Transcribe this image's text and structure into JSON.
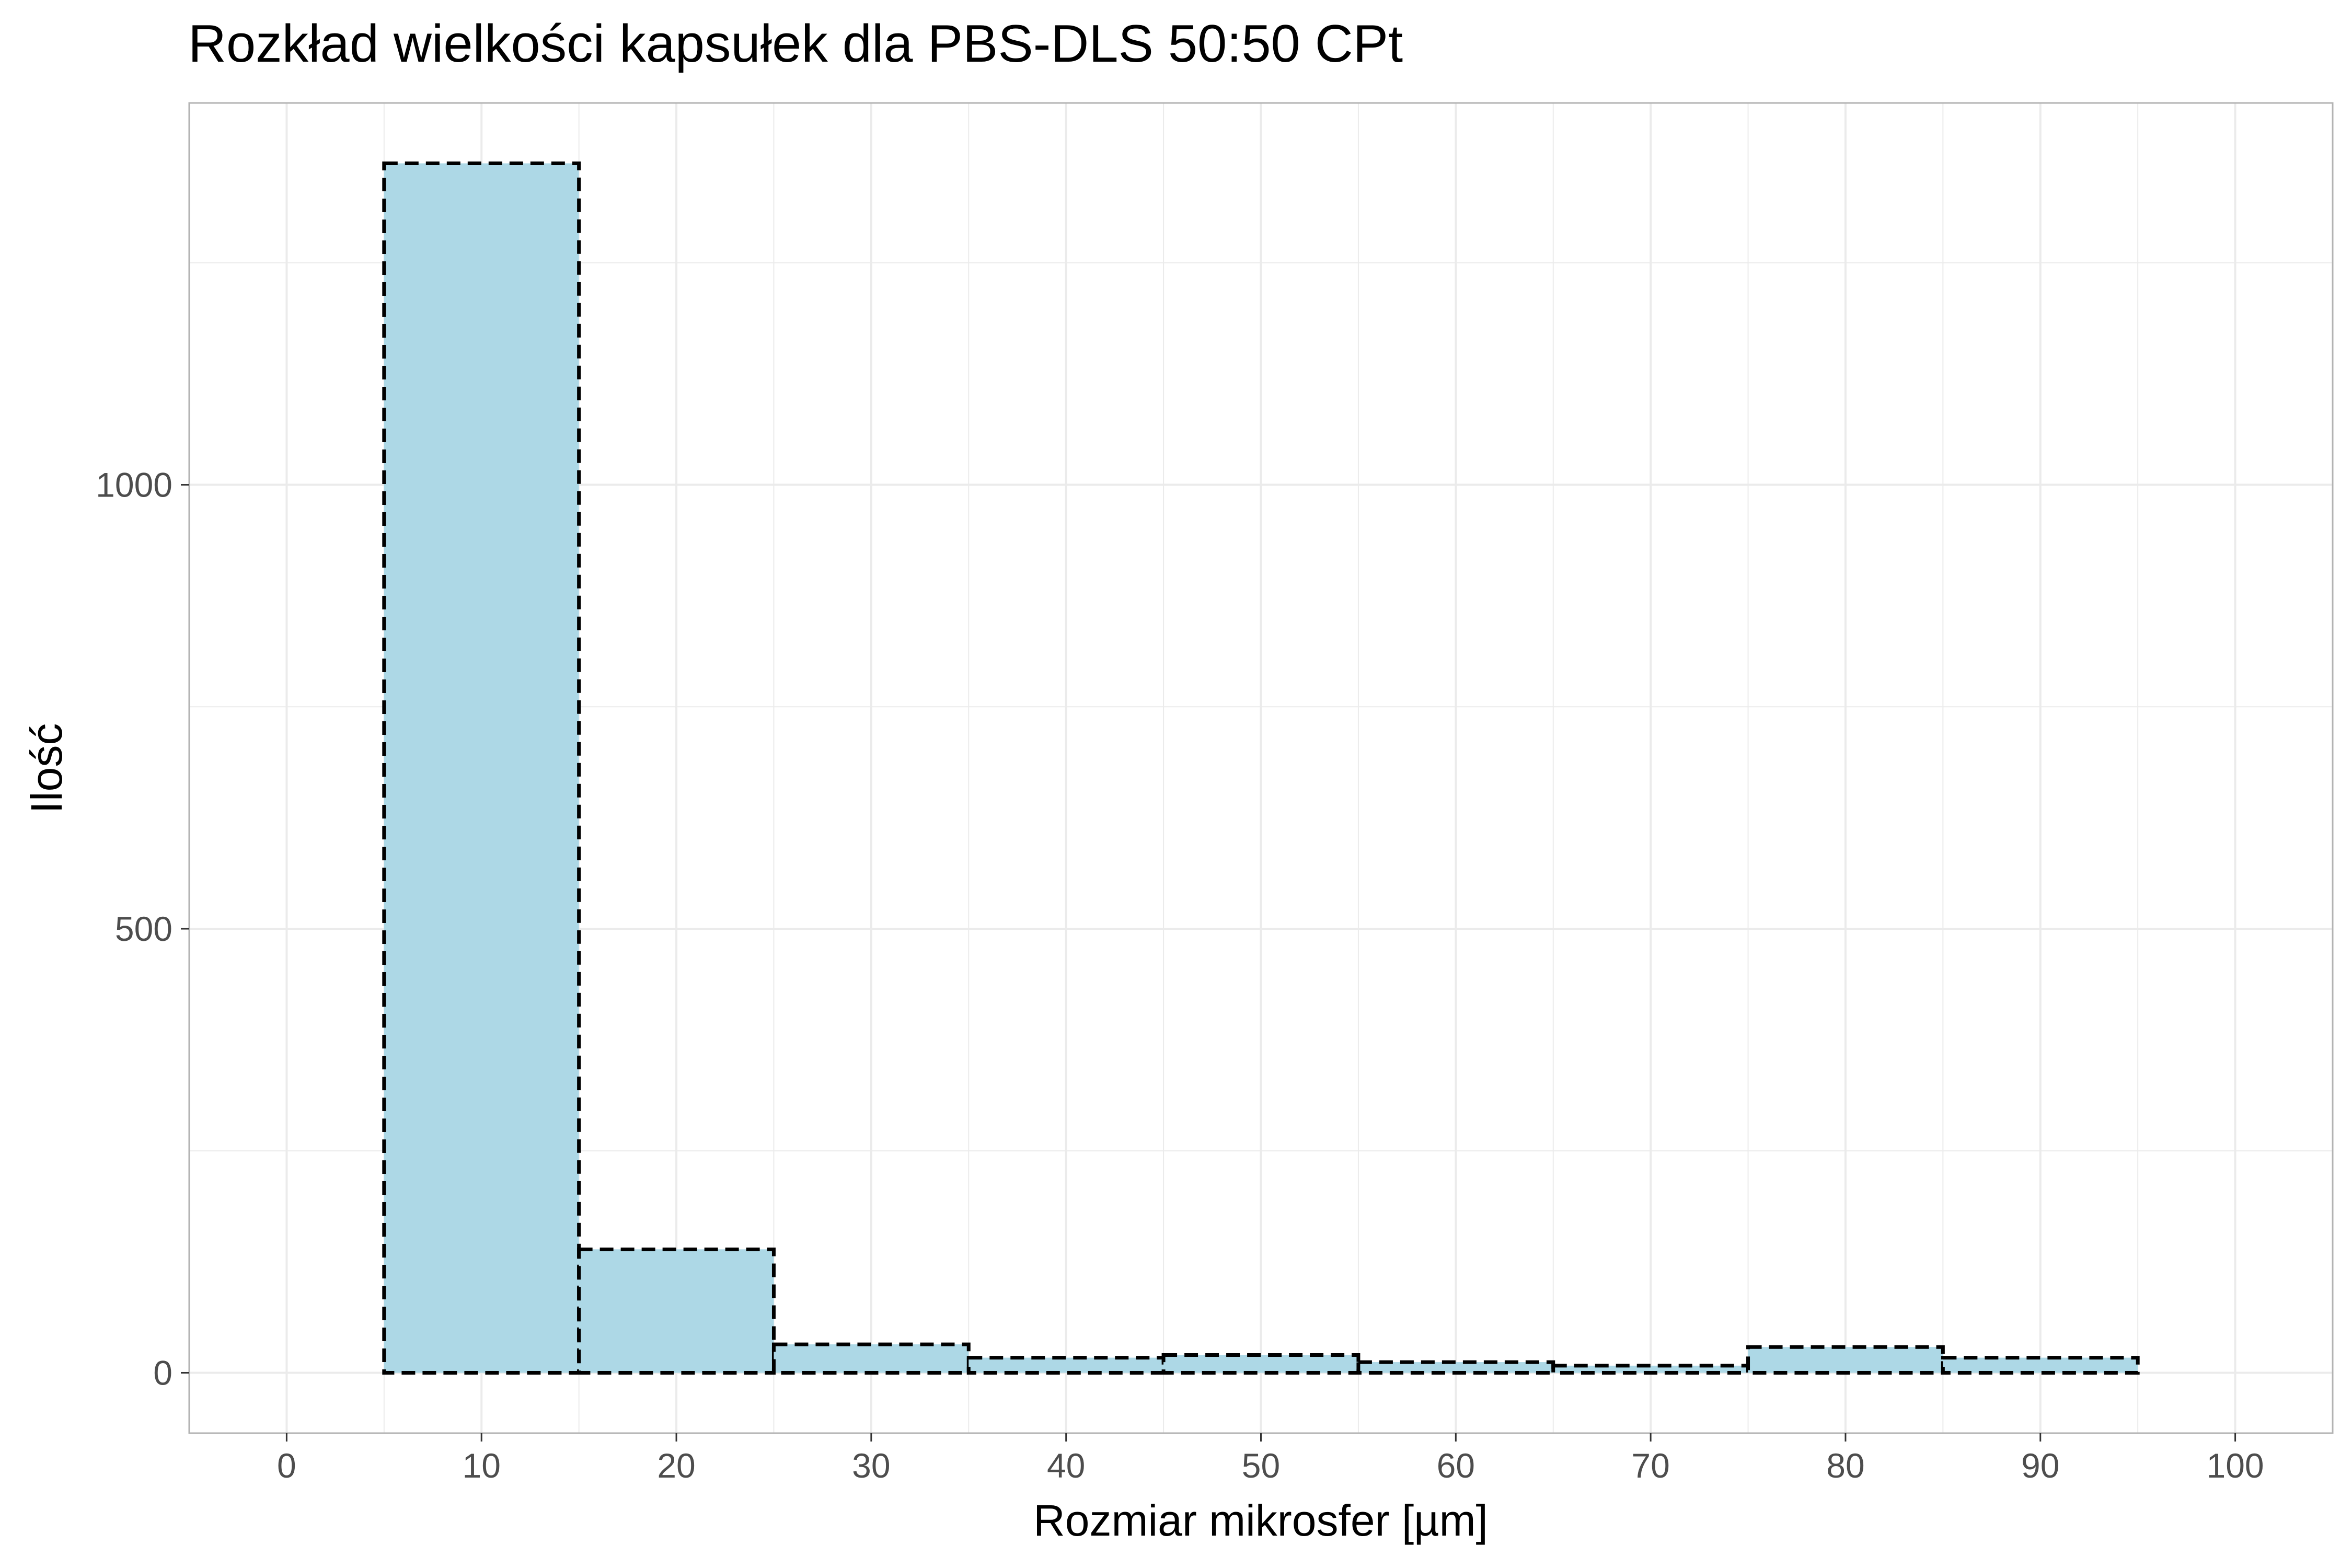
{
  "chart_data": {
    "type": "bar",
    "title": "Rozkład wielkości kapsułek dla PBS-DLS 50:50 CPt",
    "xlabel": "Rozmiar mikrosfer [µm]",
    "ylabel": "Ilość",
    "bins": [
      {
        "x0": 5,
        "x1": 15,
        "count": 1362
      },
      {
        "x0": 15,
        "x1": 25,
        "count": 139
      },
      {
        "x0": 25,
        "x1": 35,
        "count": 32
      },
      {
        "x0": 35,
        "x1": 45,
        "count": 17
      },
      {
        "x0": 45,
        "x1": 55,
        "count": 20
      },
      {
        "x0": 55,
        "x1": 65,
        "count": 12
      },
      {
        "x0": 65,
        "x1": 75,
        "count": 8
      },
      {
        "x0": 75,
        "x1": 85,
        "count": 29
      },
      {
        "x0": 85,
        "x1": 95,
        "count": 17
      }
    ],
    "xlim": [
      -5,
      105
    ],
    "ylim": [
      -68,
      1430
    ],
    "x_ticks": [
      0,
      10,
      20,
      30,
      40,
      50,
      60,
      70,
      80,
      90,
      100
    ],
    "y_ticks": [
      0,
      500,
      1000
    ],
    "y_minor_ticks": [
      250,
      750,
      1250
    ],
    "x_tick_labels": [
      "0",
      "10",
      "20",
      "30",
      "40",
      "50",
      "60",
      "70",
      "80",
      "90",
      "100"
    ],
    "y_tick_labels": [
      "0",
      "500",
      "1000"
    ],
    "grid": true,
    "legend": "none",
    "colors": {
      "fill": "#add8e6",
      "outline": "#000000",
      "grid": "#ebebeb",
      "panel_border": "#b3b3b3",
      "tick_text": "#4d4d4d"
    }
  }
}
